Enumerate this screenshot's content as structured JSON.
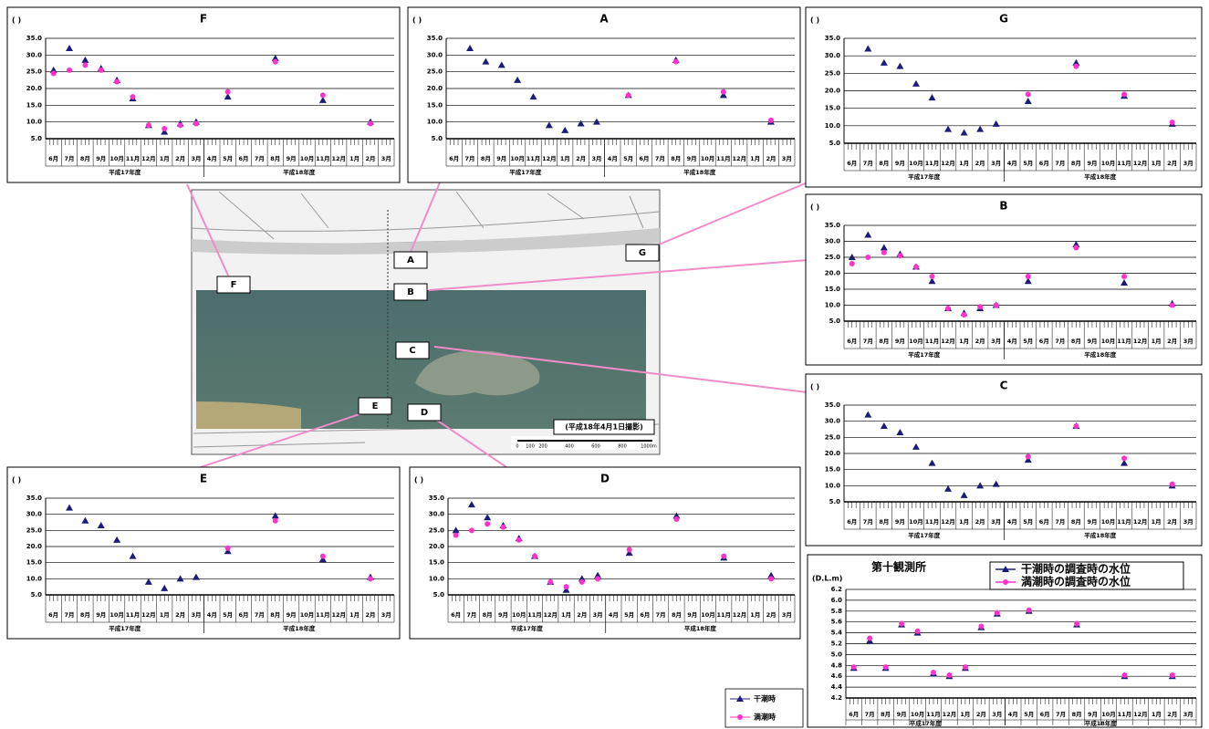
{
  "chart_data": [
    {
      "type": "scatter",
      "title": "F",
      "ylabel": "(   )",
      "categories": [
        "6月",
        "7月",
        "8月",
        "9月",
        "10月",
        "11月",
        "12月",
        "1月",
        "2月",
        "3月",
        "4月",
        "5月",
        "6月",
        "7月",
        "8月",
        "9月",
        "10月",
        "11月",
        "12月",
        "1月",
        "2月",
        "3月"
      ],
      "fiscal_years": [
        "平成17年度",
        "平成18年度"
      ],
      "ylim": [
        5,
        35
      ],
      "yticks": [
        {
          "value": 5,
          "label": "5.0"
        },
        {
          "value": 10,
          "label": "10.0"
        },
        {
          "value": 15,
          "label": "15.0"
        },
        {
          "value": 20,
          "label": "20.0"
        },
        {
          "value": 25,
          "label": "25.0"
        },
        {
          "value": 30,
          "label": "30.0"
        },
        {
          "value": 35,
          "label": "35.0"
        }
      ],
      "grid": true,
      "series": [
        {
          "color": "#1c1c78",
          "marker": "triangle",
          "values": [
            25.5,
            32,
            28.5,
            26,
            22.5,
            17,
            9,
            7,
            9.5,
            10,
            null,
            17.5,
            null,
            null,
            29,
            null,
            null,
            16.5,
            null,
            null,
            10,
            null
          ]
        },
        {
          "color": "#ff33cc",
          "marker": "circle",
          "values": [
            24.5,
            25.5,
            27,
            25.5,
            22,
            17.5,
            9,
            8,
            9,
            9.5,
            null,
            19,
            null,
            null,
            28,
            null,
            null,
            18,
            null,
            null,
            9.5,
            null
          ]
        }
      ]
    },
    {
      "type": "scatter",
      "title": "A",
      "ylabel": "(   )",
      "categories": [
        "6月",
        "7月",
        "8月",
        "9月",
        "10月",
        "11月",
        "12月",
        "1月",
        "2月",
        "3月",
        "4月",
        "5月",
        "6月",
        "7月",
        "8月",
        "9月",
        "10月",
        "11月",
        "12月",
        "1月",
        "2月",
        "3月"
      ],
      "fiscal_years": [
        "平成17年度",
        "平成18年度"
      ],
      "ylim": [
        5,
        35
      ],
      "yticks": [
        {
          "value": 5,
          "label": "5.0"
        },
        {
          "value": 10,
          "label": "10.0"
        },
        {
          "value": 15,
          "label": "15.0"
        },
        {
          "value": 20,
          "label": "20.0"
        },
        {
          "value": 25,
          "label": "25.0"
        },
        {
          "value": 30,
          "label": "30.0"
        },
        {
          "value": 35,
          "label": "35.0"
        }
      ],
      "grid": true,
      "series": [
        {
          "color": "#1c1c78",
          "marker": "triangle",
          "values": [
            null,
            32,
            28,
            27,
            22.5,
            17.5,
            9,
            7.5,
            9.5,
            10,
            null,
            18,
            null,
            null,
            28.5,
            null,
            null,
            18,
            null,
            null,
            10,
            null
          ]
        },
        {
          "color": "#ff33cc",
          "marker": "circle",
          "values": [
            null,
            null,
            null,
            null,
            null,
            null,
            null,
            null,
            null,
            null,
            null,
            18,
            null,
            null,
            28,
            null,
            null,
            19,
            null,
            null,
            10.5,
            null
          ]
        }
      ]
    },
    {
      "type": "scatter",
      "title": "G",
      "ylabel": "(   )",
      "categories": [
        "6月",
        "7月",
        "8月",
        "9月",
        "10月",
        "11月",
        "12月",
        "1月",
        "2月",
        "3月",
        "4月",
        "5月",
        "6月",
        "7月",
        "8月",
        "9月",
        "10月",
        "11月",
        "12月",
        "1月",
        "2月",
        "3月"
      ],
      "fiscal_years": [
        "平成17年度",
        "平成18年度"
      ],
      "ylim": [
        5,
        35
      ],
      "yticks": [
        {
          "value": 5,
          "label": "5.0"
        },
        {
          "value": 10,
          "label": "10.0"
        },
        {
          "value": 15,
          "label": "15.0"
        },
        {
          "value": 20,
          "label": "20.0"
        },
        {
          "value": 25,
          "label": "25.0"
        },
        {
          "value": 30,
          "label": "30.0"
        },
        {
          "value": 35,
          "label": "35.0"
        }
      ],
      "grid": true,
      "series": [
        {
          "color": "#1c1c78",
          "marker": "triangle",
          "values": [
            null,
            32,
            28,
            27,
            22,
            18,
            9,
            8,
            9,
            10.5,
            null,
            17,
            null,
            null,
            28,
            null,
            null,
            18.5,
            null,
            null,
            10.5,
            null
          ]
        },
        {
          "color": "#ff33cc",
          "marker": "circle",
          "values": [
            null,
            null,
            null,
            null,
            null,
            null,
            null,
            null,
            null,
            null,
            null,
            19,
            null,
            null,
            27,
            null,
            null,
            19,
            null,
            null,
            11,
            null
          ]
        }
      ]
    },
    {
      "type": "scatter",
      "title": "B",
      "ylabel": "(   )",
      "categories": [
        "6月",
        "7月",
        "8月",
        "9月",
        "10月",
        "11月",
        "12月",
        "1月",
        "2月",
        "3月",
        "4月",
        "5月",
        "6月",
        "7月",
        "8月",
        "9月",
        "10月",
        "11月",
        "12月",
        "1月",
        "2月",
        "3月"
      ],
      "fiscal_years": [
        "平成17年度",
        "平成18年度"
      ],
      "ylim": [
        5,
        35
      ],
      "yticks": [
        {
          "value": 5,
          "label": "5.0"
        },
        {
          "value": 10,
          "label": "10.0"
        },
        {
          "value": 15,
          "label": "15.0"
        },
        {
          "value": 20,
          "label": "20.0"
        },
        {
          "value": 25,
          "label": "25.0"
        },
        {
          "value": 30,
          "label": "30.0"
        },
        {
          "value": 35,
          "label": "35.0"
        }
      ],
      "grid": true,
      "series": [
        {
          "color": "#1c1c78",
          "marker": "triangle",
          "values": [
            25,
            32,
            28,
            26,
            22,
            17.5,
            9,
            7.5,
            9,
            10,
            null,
            17.5,
            null,
            null,
            29,
            null,
            null,
            17,
            null,
            null,
            10.5,
            null
          ]
        },
        {
          "color": "#ff33cc",
          "marker": "circle",
          "values": [
            23,
            25,
            26.5,
            25.5,
            22,
            19,
            9,
            7,
            9.5,
            10,
            null,
            19,
            null,
            null,
            28,
            null,
            null,
            19,
            null,
            null,
            10,
            null
          ]
        }
      ]
    },
    {
      "type": "scatter",
      "title": "C",
      "ylabel": "(   )",
      "categories": [
        "6月",
        "7月",
        "8月",
        "9月",
        "10月",
        "11月",
        "12月",
        "1月",
        "2月",
        "3月",
        "4月",
        "5月",
        "6月",
        "7月",
        "8月",
        "9月",
        "10月",
        "11月",
        "12月",
        "1月",
        "2月",
        "3月"
      ],
      "fiscal_years": [
        "平成17年度",
        "平成18年度"
      ],
      "ylim": [
        5,
        35
      ],
      "yticks": [
        {
          "value": 5,
          "label": "5.0"
        },
        {
          "value": 10,
          "label": "10.0"
        },
        {
          "value": 15,
          "label": "15.0"
        },
        {
          "value": 20,
          "label": "20.0"
        },
        {
          "value": 25,
          "label": "25.0"
        },
        {
          "value": 30,
          "label": "30.0"
        },
        {
          "value": 35,
          "label": "35.0"
        }
      ],
      "grid": true,
      "series": [
        {
          "color": "#1c1c78",
          "marker": "triangle",
          "values": [
            null,
            32,
            28.5,
            26.5,
            22,
            17,
            9,
            7,
            10,
            10.5,
            null,
            18,
            null,
            null,
            28.5,
            null,
            null,
            17,
            null,
            null,
            10,
            null
          ]
        },
        {
          "color": "#ff33cc",
          "marker": "circle",
          "values": [
            null,
            null,
            null,
            null,
            null,
            null,
            null,
            null,
            null,
            null,
            null,
            19,
            null,
            null,
            28.5,
            null,
            null,
            18.5,
            null,
            null,
            10.5,
            null
          ]
        }
      ]
    },
    {
      "type": "scatter",
      "title": "E",
      "ylabel": "(   )",
      "categories": [
        "6月",
        "7月",
        "8月",
        "9月",
        "10月",
        "11月",
        "12月",
        "1月",
        "2月",
        "3月",
        "4月",
        "5月",
        "6月",
        "7月",
        "8月",
        "9月",
        "10月",
        "11月",
        "12月",
        "1月",
        "2月",
        "3月"
      ],
      "fiscal_years": [
        "平成17年度",
        "平成18年度"
      ],
      "ylim": [
        5,
        35
      ],
      "yticks": [
        {
          "value": 5,
          "label": "5.0"
        },
        {
          "value": 10,
          "label": "10.0"
        },
        {
          "value": 15,
          "label": "15.0"
        },
        {
          "value": 20,
          "label": "20.0"
        },
        {
          "value": 25,
          "label": "25.0"
        },
        {
          "value": 30,
          "label": "30.0"
        },
        {
          "value": 35,
          "label": "35.0"
        }
      ],
      "grid": true,
      "series": [
        {
          "color": "#1c1c78",
          "marker": "triangle",
          "values": [
            null,
            32,
            28,
            26.5,
            22,
            17,
            9,
            7,
            10,
            10.5,
            null,
            18.5,
            null,
            null,
            29.5,
            null,
            null,
            16,
            null,
            null,
            10.5,
            null
          ]
        },
        {
          "color": "#ff33cc",
          "marker": "circle",
          "values": [
            null,
            null,
            null,
            null,
            null,
            null,
            null,
            null,
            null,
            null,
            null,
            19.5,
            null,
            null,
            28,
            null,
            null,
            17,
            null,
            null,
            10,
            null
          ]
        }
      ]
    },
    {
      "type": "scatter",
      "title": "D",
      "ylabel": "(   )",
      "categories": [
        "6月",
        "7月",
        "8月",
        "9月",
        "10月",
        "11月",
        "12月",
        "1月",
        "2月",
        "3月",
        "4月",
        "5月",
        "6月",
        "7月",
        "8月",
        "9月",
        "10月",
        "11月",
        "12月",
        "1月",
        "2月",
        "3月"
      ],
      "fiscal_years": [
        "平成17年度",
        "平成18年度"
      ],
      "ylim": [
        5,
        35
      ],
      "yticks": [
        {
          "value": 5,
          "label": "5.0"
        },
        {
          "value": 10,
          "label": "10.0"
        },
        {
          "value": 15,
          "label": "15.0"
        },
        {
          "value": 20,
          "label": "20.0"
        },
        {
          "value": 25,
          "label": "25.0"
        },
        {
          "value": 30,
          "label": "30.0"
        },
        {
          "value": 35,
          "label": "35.0"
        }
      ],
      "grid": true,
      "series": [
        {
          "color": "#1c1c78",
          "marker": "triangle",
          "values": [
            25,
            33,
            29,
            26.5,
            22.5,
            17,
            9,
            6.5,
            10,
            11,
            null,
            18,
            null,
            null,
            29.5,
            null,
            null,
            16.5,
            null,
            null,
            11,
            null
          ]
        },
        {
          "color": "#ff33cc",
          "marker": "circle",
          "values": [
            23.5,
            25,
            27,
            26,
            22,
            17,
            9,
            7.5,
            9,
            10,
            null,
            19,
            null,
            null,
            28.5,
            null,
            null,
            17,
            null,
            null,
            10,
            null
          ]
        }
      ]
    },
    {
      "type": "scatter",
      "title": "第十観測所",
      "ylabel": "(D.L.m)",
      "categories": [
        "6月",
        "7月",
        "8月",
        "9月",
        "10月",
        "11月",
        "12月",
        "1月",
        "2月",
        "3月",
        "4月",
        "5月",
        "6月",
        "7月",
        "8月",
        "9月",
        "10月",
        "11月",
        "12月",
        "1月",
        "2月",
        "3月"
      ],
      "fiscal_years": [
        "平成17年度",
        "平成18年度"
      ],
      "ylim": [
        4.2,
        6.2
      ],
      "yticks": [
        4.2,
        4.4,
        4.6,
        4.8,
        {
          "value": 5,
          "label": "5.0"
        },
        5.2,
        5.4,
        5.6,
        5.8,
        {
          "value": 6,
          "label": "6.0"
        },
        6.2
      ],
      "grid": true,
      "series": [
        {
          "name": "干潮時の調査時の水位",
          "color": "#1c1c78",
          "marker": "triangle",
          "values": [
            4.75,
            5.25,
            4.75,
            5.55,
            5.4,
            4.65,
            4.6,
            4.75,
            5.5,
            5.75,
            null,
            5.8,
            null,
            null,
            5.55,
            null,
            null,
            4.6,
            null,
            null,
            4.6,
            null
          ]
        },
        {
          "name": "満潮時の調査時の水位",
          "color": "#ff33cc",
          "marker": "circle",
          "values": [
            4.77,
            5.3,
            4.77,
            5.57,
            5.43,
            4.67,
            4.62,
            4.77,
            5.52,
            5.77,
            null,
            5.82,
            null,
            null,
            5.57,
            null,
            null,
            4.62,
            null,
            null,
            4.62,
            null
          ]
        }
      ]
    }
  ],
  "legend": {
    "series": [
      {
        "name": "干潮時",
        "color": "#1c1c78",
        "marker": "triangle"
      },
      {
        "name": "満潮時",
        "color": "#ff33cc",
        "marker": "circle"
      }
    ]
  },
  "map": {
    "labels": [
      "F",
      "A",
      "G",
      "B",
      "C",
      "E",
      "D"
    ],
    "caption": "(平成18年4月1日撮影)",
    "scale": [
      "0",
      "100",
      "200",
      "400",
      "600",
      "800",
      "1000m"
    ]
  }
}
